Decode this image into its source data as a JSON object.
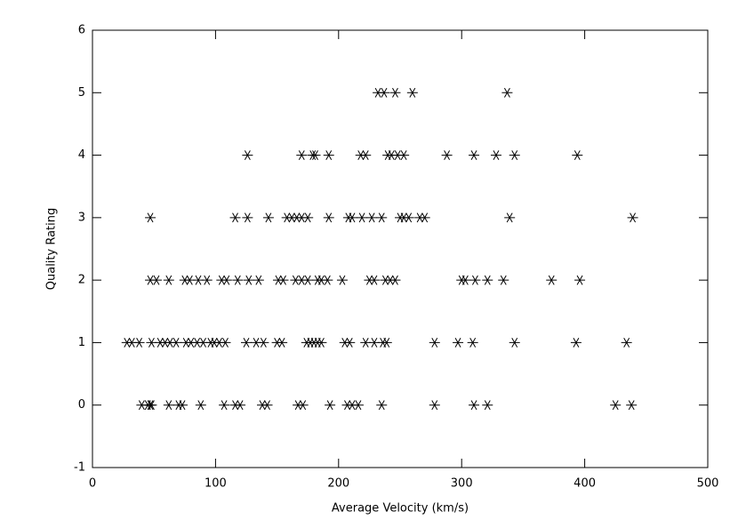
{
  "chart_data": {
    "type": "scatter",
    "xlabel": "Average Velocity (km/s)",
    "ylabel": "Quality Rating",
    "color": "#000000",
    "xlim": [
      0,
      500
    ],
    "xticks": [
      0,
      100,
      200,
      300,
      400,
      500
    ],
    "ylim": [
      -1,
      6
    ],
    "yticks": [
      -1,
      0,
      1,
      2,
      3,
      4,
      5,
      6
    ],
    "x": [
      232,
      237,
      246,
      260,
      337,
      126,
      170,
      179,
      181,
      192,
      218,
      222,
      240,
      243,
      248,
      253,
      288,
      310,
      328,
      343,
      394,
      47,
      116,
      126,
      143,
      158,
      162,
      166,
      170,
      175,
      192,
      208,
      211,
      219,
      227,
      235,
      250,
      253,
      257,
      266,
      270,
      339,
      439,
      47,
      52,
      62,
      75,
      79,
      86,
      93,
      105,
      109,
      118,
      127,
      135,
      151,
      155,
      165,
      170,
      175,
      183,
      186,
      191,
      203,
      225,
      229,
      238,
      242,
      246,
      300,
      303,
      311,
      321,
      334,
      373,
      396,
      28,
      32,
      38,
      48,
      55,
      59,
      63,
      68,
      76,
      80,
      85,
      90,
      96,
      99,
      103,
      108,
      125,
      133,
      139,
      150,
      154,
      174,
      177,
      180,
      183,
      186,
      205,
      209,
      222,
      229,
      236,
      239,
      278,
      297,
      309,
      343,
      393,
      434,
      40,
      45,
      47,
      48,
      62,
      70,
      73,
      88,
      107,
      116,
      120,
      138,
      142,
      167,
      171,
      193,
      207,
      211,
      216,
      235,
      278,
      310,
      321,
      425,
      438
    ],
    "values": [
      5,
      5,
      5,
      5,
      5,
      4,
      4,
      4,
      4,
      4,
      4,
      4,
      4,
      4,
      4,
      4,
      4,
      4,
      4,
      4,
      4,
      3,
      3,
      3,
      3,
      3,
      3,
      3,
      3,
      3,
      3,
      3,
      3,
      3,
      3,
      3,
      3,
      3,
      3,
      3,
      3,
      3,
      3,
      2,
      2,
      2,
      2,
      2,
      2,
      2,
      2,
      2,
      2,
      2,
      2,
      2,
      2,
      2,
      2,
      2,
      2,
      2,
      2,
      2,
      2,
      2,
      2,
      2,
      2,
      2,
      2,
      2,
      2,
      2,
      2,
      2,
      1,
      1,
      1,
      1,
      1,
      1,
      1,
      1,
      1,
      1,
      1,
      1,
      1,
      1,
      1,
      1,
      1,
      1,
      1,
      1,
      1,
      1,
      1,
      1,
      1,
      1,
      1,
      1,
      1,
      1,
      1,
      1,
      1,
      1,
      1,
      1,
      1,
      1,
      0,
      0,
      0,
      0,
      0,
      0,
      0,
      0,
      0,
      0,
      0,
      0,
      0,
      0,
      0,
      0,
      0,
      0,
      0,
      0,
      0,
      0,
      0,
      0,
      0
    ]
  }
}
